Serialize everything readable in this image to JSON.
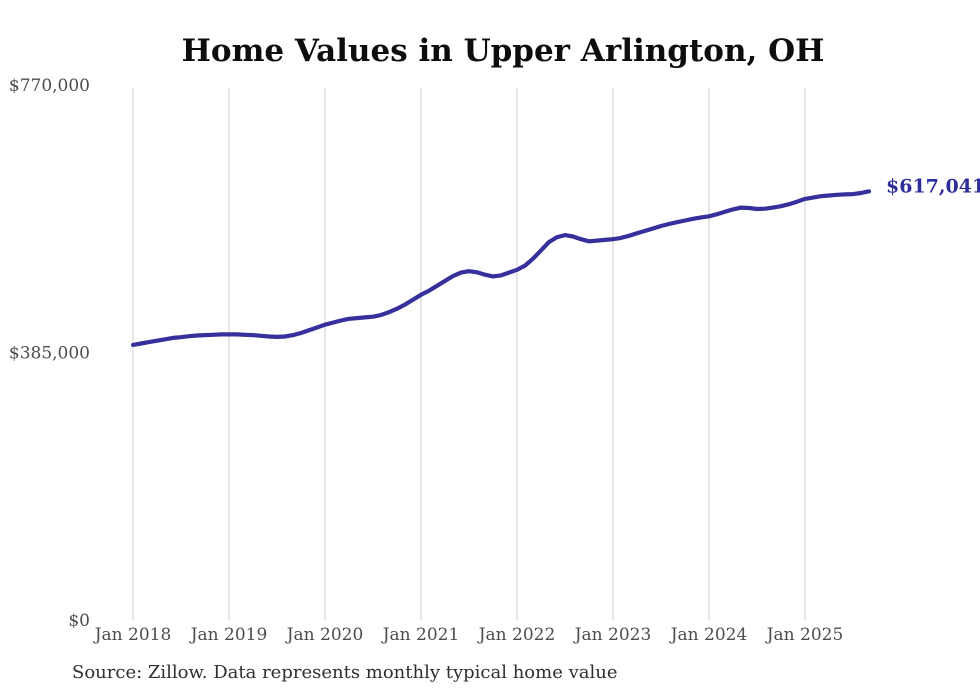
{
  "chart": {
    "title": "Home Values in Upper Arlington, OH",
    "latest_value_label": "$617,041",
    "source_note": "Source: Zillow. Data represents monthly typical home value",
    "colors": {
      "line": "#35309c",
      "annotation": "#2d2d9b",
      "grid": "#cccccc",
      "axis_text": "#4d4d4d",
      "title_text": "#0d0d0d",
      "source_text": "#2e2e2e",
      "background": "#ffffff"
    }
  },
  "chart_data": {
    "type": "line",
    "title": "Home Values in Upper Arlington, OH",
    "series_name": "Monthly typical home value",
    "x_unit": "month",
    "x_start": "2018-01",
    "x_end": "2025-09",
    "x_tick_labels": [
      "Jan 2018",
      "Jan 2019",
      "Jan 2020",
      "Jan 2021",
      "Jan 2022",
      "Jan 2023",
      "Jan 2024",
      "Jan 2025"
    ],
    "y_ticks": [
      {
        "label": "$770,000",
        "value": 770000
      },
      {
        "label": "$385,000",
        "value": 385000
      },
      {
        "label": "$0",
        "value": 0
      }
    ],
    "ylim": [
      0,
      770000
    ],
    "grid": "vertical-only",
    "legend": "none",
    "end_annotation": "$617,041",
    "latest_value": 617041,
    "months": [
      "2018-01",
      "2018-02",
      "2018-03",
      "2018-04",
      "2018-05",
      "2018-06",
      "2018-07",
      "2018-08",
      "2018-09",
      "2018-10",
      "2018-11",
      "2018-12",
      "2019-01",
      "2019-02",
      "2019-03",
      "2019-04",
      "2019-05",
      "2019-06",
      "2019-07",
      "2019-08",
      "2019-09",
      "2019-10",
      "2019-11",
      "2019-12",
      "2020-01",
      "2020-02",
      "2020-03",
      "2020-04",
      "2020-05",
      "2020-06",
      "2020-07",
      "2020-08",
      "2020-09",
      "2020-10",
      "2020-11",
      "2020-12",
      "2021-01",
      "2021-02",
      "2021-03",
      "2021-04",
      "2021-05",
      "2021-06",
      "2021-07",
      "2021-08",
      "2021-09",
      "2021-10",
      "2021-11",
      "2021-12",
      "2022-01",
      "2022-02",
      "2022-03",
      "2022-04",
      "2022-05",
      "2022-06",
      "2022-07",
      "2022-08",
      "2022-09",
      "2022-10",
      "2022-11",
      "2022-12",
      "2023-01",
      "2023-02",
      "2023-03",
      "2023-04",
      "2023-05",
      "2023-06",
      "2023-07",
      "2023-08",
      "2023-09",
      "2023-10",
      "2023-11",
      "2023-12",
      "2024-01",
      "2024-02",
      "2024-03",
      "2024-04",
      "2024-05",
      "2024-06",
      "2024-07",
      "2024-08",
      "2024-09",
      "2024-10",
      "2024-11",
      "2024-12",
      "2025-01",
      "2025-02",
      "2025-03",
      "2025-04",
      "2025-05",
      "2025-06",
      "2025-07",
      "2025-08",
      "2025-09"
    ],
    "values": [
      396000,
      398000,
      400000,
      402000,
      404000,
      406000,
      407000,
      408500,
      409500,
      410000,
      410500,
      411000,
      411000,
      411000,
      410500,
      410000,
      409000,
      408000,
      407500,
      408000,
      410000,
      413000,
      417000,
      421000,
      425000,
      428000,
      431000,
      433500,
      434500,
      435500,
      436500,
      439000,
      443000,
      448000,
      454000,
      461000,
      468000,
      474000,
      481000,
      488000,
      495000,
      500000,
      502000,
      500500,
      497000,
      494500,
      496000,
      500000,
      504000,
      510000,
      520000,
      532000,
      544000,
      551000,
      554000,
      552000,
      548000,
      545000,
      546000,
      547000,
      548000,
      550000,
      553000,
      556500,
      560000,
      563500,
      567000,
      570000,
      572500,
      575000,
      577500,
      579500,
      581000,
      584000,
      587500,
      591000,
      593500,
      593000,
      591500,
      592000,
      593500,
      595500,
      598500,
      602000,
      606000,
      608000,
      610000,
      611000,
      612000,
      612500,
      613000,
      614500,
      617041
    ]
  }
}
